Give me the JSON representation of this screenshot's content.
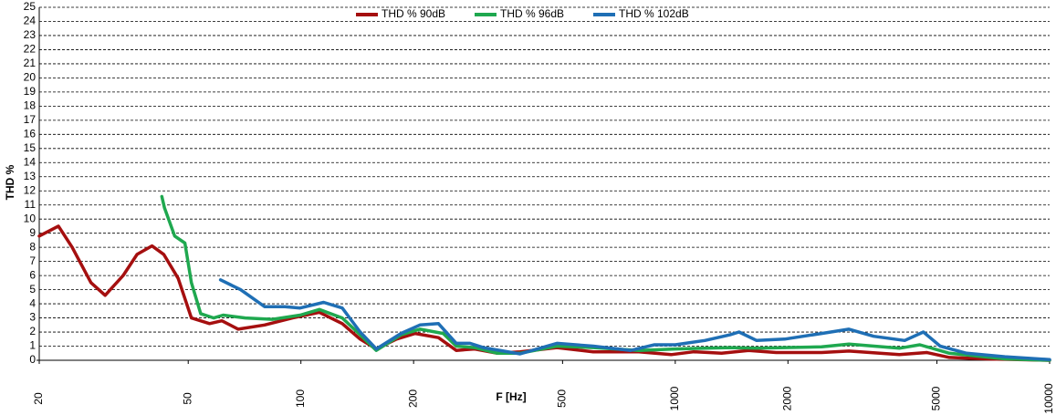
{
  "chart_data": {
    "type": "line",
    "x_label": "F [Hz]",
    "y_label": "THD %",
    "xscale": "log",
    "grid": true,
    "legend": "top",
    "xlim": [
      20,
      10000
    ],
    "xticks": [
      20,
      50,
      100,
      200,
      500,
      1000,
      2000,
      5000,
      10000
    ],
    "ylim": [
      0,
      25
    ],
    "yticks": [
      0,
      1,
      2,
      3,
      4,
      5,
      6,
      7,
      8,
      9,
      10,
      11,
      12,
      13,
      14,
      15,
      16,
      17,
      18,
      19,
      20,
      21,
      22,
      23,
      24,
      25
    ],
    "series": [
      {
        "name": "THD % 90dB",
        "color": "#a50f0f",
        "x": [
          20,
          22.5,
          24.5,
          27.5,
          30,
          33.5,
          36.5,
          40,
          43,
          47,
          51,
          57,
          61.5,
          68,
          80,
          95,
          112,
          129,
          144,
          159,
          180,
          202,
          233,
          260,
          291,
          335,
          385,
          483,
          604,
          800,
          975,
          1120,
          1330,
          1570,
          1860,
          2460,
          2910,
          3970,
          4700,
          5400,
          6760,
          10000
        ],
        "values": [
          8.8,
          9.5,
          8.0,
          5.5,
          4.6,
          6.0,
          7.5,
          8.1,
          7.5,
          5.8,
          3.0,
          2.6,
          2.8,
          2.2,
          2.5,
          3.0,
          3.4,
          2.6,
          1.5,
          0.8,
          1.5,
          1.9,
          1.6,
          0.7,
          0.8,
          0.5,
          0.6,
          0.9,
          0.6,
          0.6,
          0.4,
          0.6,
          0.5,
          0.7,
          0.55,
          0.55,
          0.65,
          0.4,
          0.55,
          0.2,
          0.1,
          0
        ]
      },
      {
        "name": "THD % 96dB",
        "color": "#1fa84f",
        "x": [
          42.5,
          43.2,
          46,
          49,
          51,
          54,
          58.5,
          62,
          71,
          84,
          99.5,
          112,
          129,
          144,
          159,
          185,
          208,
          240,
          260,
          291,
          335,
          385,
          483,
          604,
          800,
          1000,
          1400,
          1650,
          2460,
          2910,
          3970,
          4500,
          5400,
          7600,
          10000
        ],
        "values": [
          11.6,
          10.8,
          8.8,
          8.3,
          5.5,
          3.3,
          3.0,
          3.2,
          3.0,
          2.9,
          3.2,
          3.6,
          3.0,
          1.8,
          0.7,
          1.8,
          2.2,
          1.9,
          1.0,
          0.9,
          0.5,
          0.5,
          1.0,
          0.9,
          0.7,
          0.8,
          0.9,
          0.85,
          0.95,
          1.15,
          0.85,
          1.1,
          0.5,
          0.1,
          0
        ]
      },
      {
        "name": "THD % 102dB",
        "color": "#1f6fb5",
        "x": [
          61,
          69,
          80,
          90.6,
          99.5,
          115,
          129,
          144,
          159,
          185,
          208,
          233,
          260,
          283,
          307,
          385,
          483,
          604,
          760,
          880,
          1000,
          1200,
          1400,
          1480,
          1650,
          1960,
          2460,
          2910,
          3390,
          4100,
          4600,
          5100,
          6000,
          7600,
          10000
        ],
        "values": [
          5.7,
          5.0,
          3.8,
          3.8,
          3.7,
          4.1,
          3.7,
          2.0,
          0.8,
          1.9,
          2.5,
          2.6,
          1.2,
          1.2,
          0.9,
          0.45,
          1.2,
          1.0,
          0.7,
          1.1,
          1.1,
          1.4,
          1.8,
          2.0,
          1.4,
          1.5,
          1.9,
          2.2,
          1.7,
          1.4,
          2.0,
          1.0,
          0.5,
          0.25,
          0.05
        ]
      }
    ]
  }
}
